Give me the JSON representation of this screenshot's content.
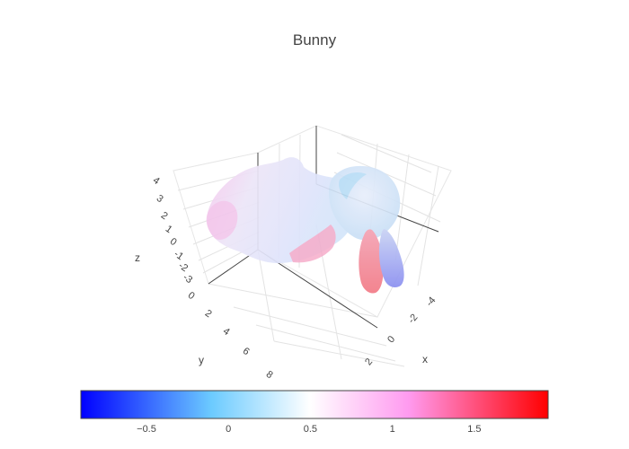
{
  "chart_data": {
    "type": "mesh3d",
    "title": "Bunny",
    "axes": {
      "x": {
        "label": "x",
        "ticks": [
          "-4",
          "-2",
          "0",
          "2"
        ]
      },
      "y": {
        "label": "y",
        "ticks": [
          "0",
          "2",
          "4",
          "6",
          "8"
        ]
      },
      "z": {
        "label": "z",
        "ticks": [
          "4",
          "3",
          "2",
          "1",
          "0",
          "-1",
          "-2",
          "-3"
        ]
      }
    },
    "colorbar": {
      "orientation": "horizontal",
      "range": [
        -0.9,
        1.95
      ],
      "ticks": [
        {
          "value": -0.5,
          "label": "−0.5"
        },
        {
          "value": 0,
          "label": "0"
        },
        {
          "value": 0.5,
          "label": "0.5"
        },
        {
          "value": 1,
          "label": "1"
        },
        {
          "value": 1.5,
          "label": "1.5"
        }
      ],
      "colorscale": [
        "#0000ff",
        "#6ccbff",
        "#ffffff",
        "#ff9bf0",
        "#ff0000"
      ]
    },
    "grid": true,
    "legend": "none"
  }
}
